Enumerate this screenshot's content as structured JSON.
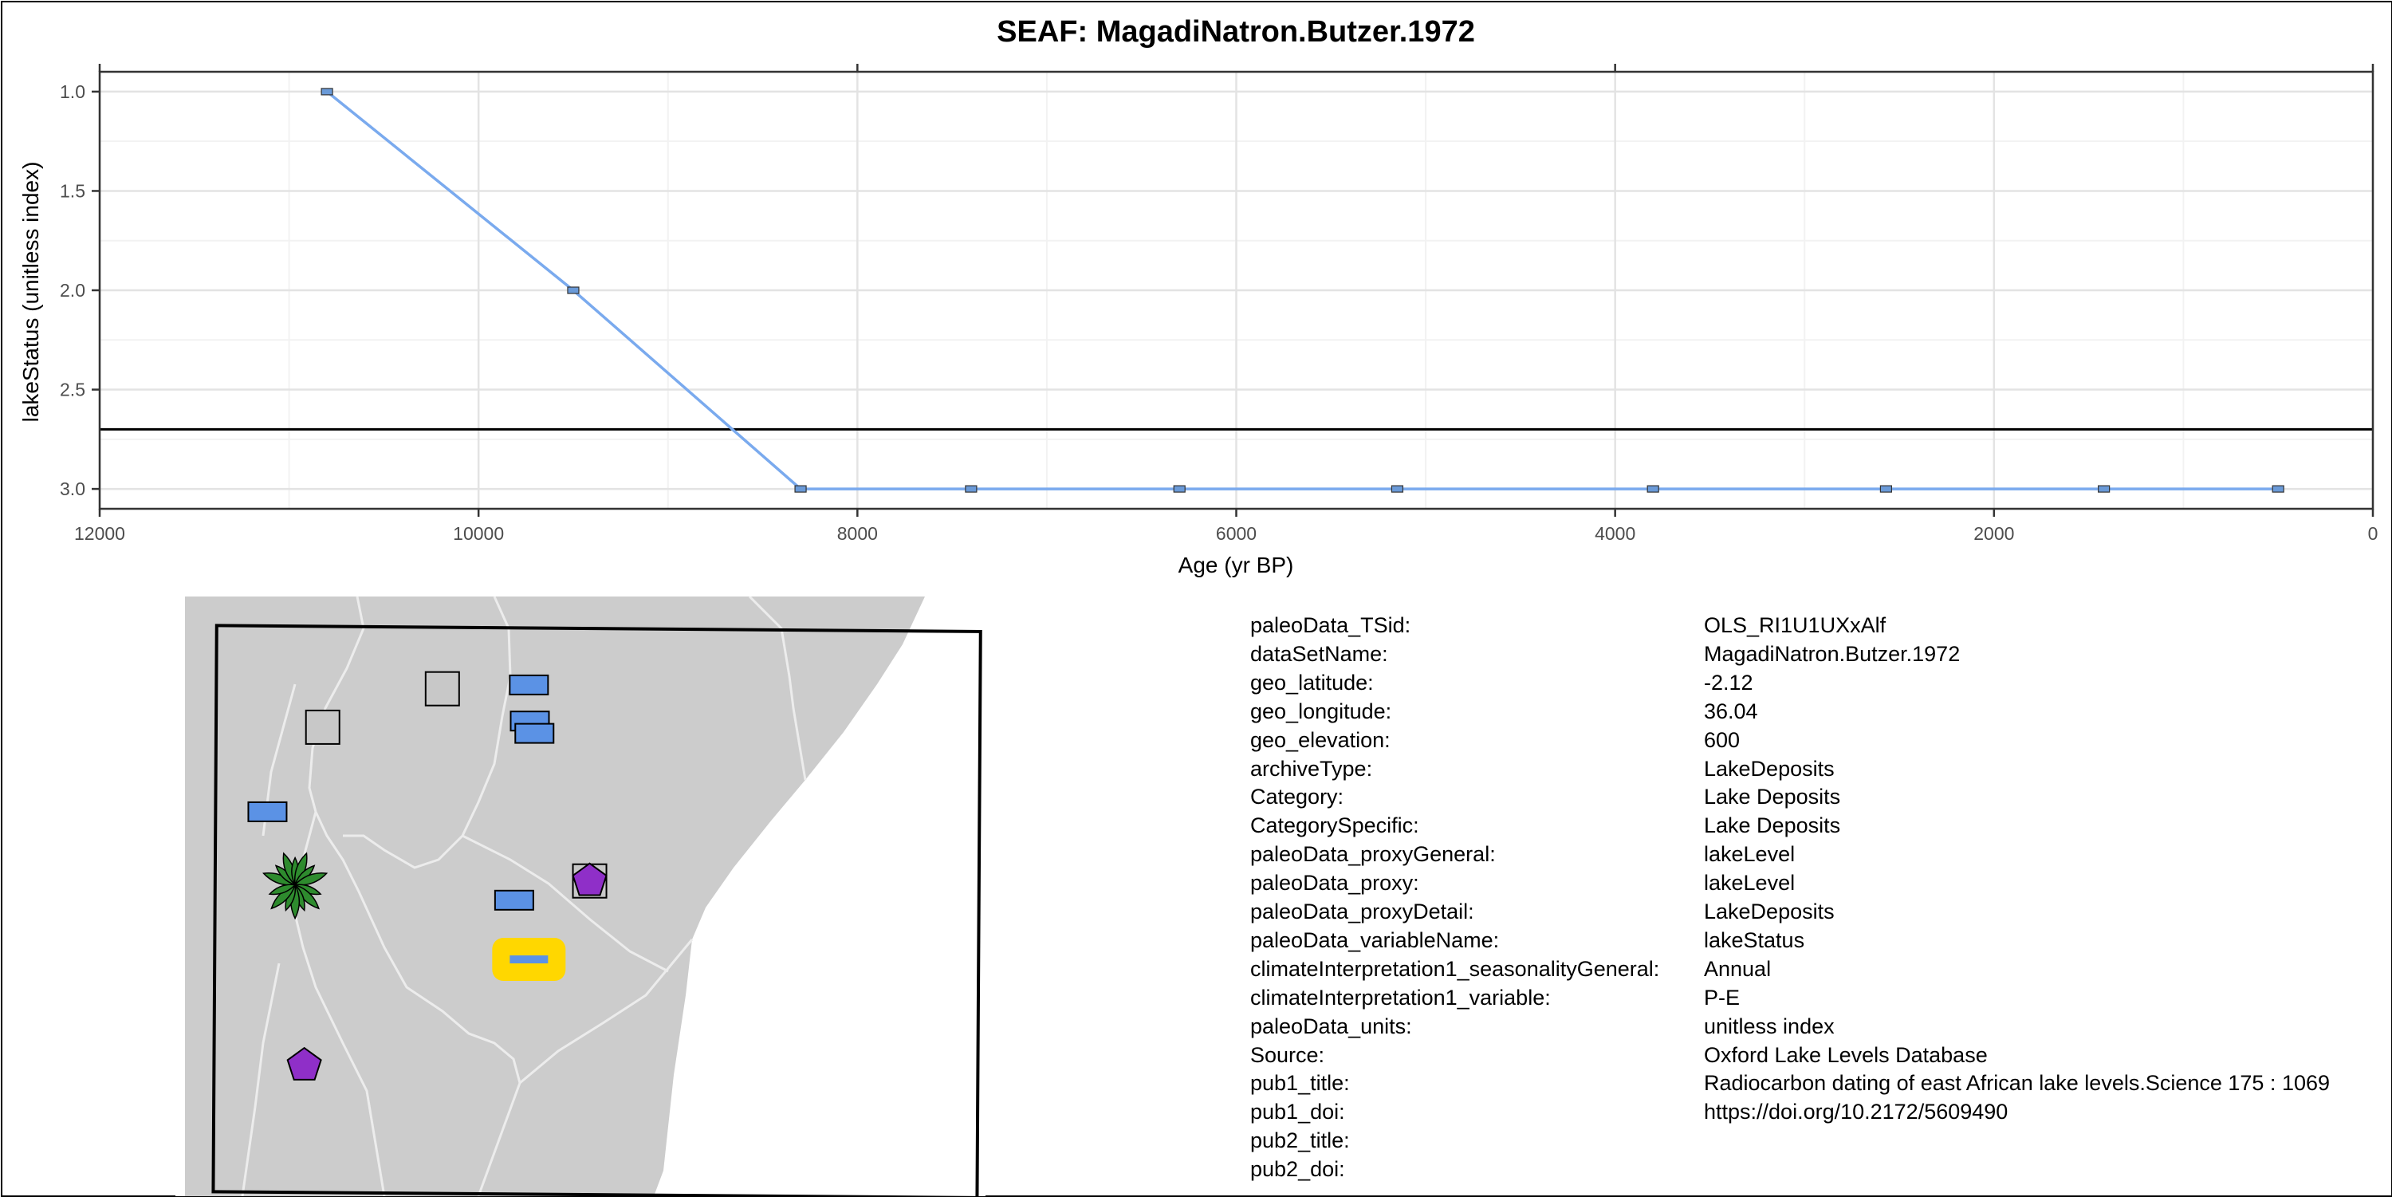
{
  "chart_data": {
    "type": "line",
    "title": "SEAF: MagadiNatron.Butzer.1972",
    "xlabel": "Age (yr BP)",
    "ylabel": "lakeStatus (unitless index)",
    "xlim": [
      12000,
      0
    ],
    "ylim": [
      3.1,
      0.9
    ],
    "x_reversed": true,
    "y_reversed": true,
    "x_ticks": [
      12000,
      10000,
      8000,
      6000,
      4000,
      2000,
      0
    ],
    "x_tick_labels": [
      "12000",
      "10000",
      "8000",
      "6000",
      "4000",
      "2000",
      "0"
    ],
    "y_ticks": [
      1.0,
      1.5,
      2.0,
      2.5,
      3.0
    ],
    "y_tick_labels": [
      "1.0",
      "1.5",
      "2.0",
      "2.5",
      "3.0"
    ],
    "grid": true,
    "hline": 2.7,
    "series": [
      {
        "color": "#7aaaee",
        "marker_color": "#6a9ad8",
        "x": [
          10800,
          9500,
          8300,
          7400,
          6300,
          5150,
          3800,
          2570,
          1420,
          500
        ],
        "y": [
          1.0,
          2.0,
          3.0,
          3.0,
          3.0,
          3.0,
          3.0,
          3.0,
          3.0,
          3.0
        ]
      }
    ]
  },
  "map": {
    "land_color": "#cccccc",
    "sea_color": "#ffffff",
    "border_color": "#e8e8e8",
    "markers": [
      {
        "shape": "square",
        "color": "#c8c8c8",
        "lon": 33.8,
        "lat": 0.9
      },
      {
        "shape": "square",
        "color": "#c8c8c8",
        "lon": 35.1,
        "lat": 1.4
      },
      {
        "shape": "rect",
        "color": "#5b92e5",
        "lon": 36.04,
        "lat": 1.45
      },
      {
        "shape": "rect",
        "color": "#5b92e5",
        "lon": 36.05,
        "lat": 0.98
      },
      {
        "shape": "rect",
        "color": "#5b92e5",
        "lon": 36.1,
        "lat": 0.82
      },
      {
        "shape": "rect",
        "color": "#5b92e5",
        "lon": 33.2,
        "lat": -0.2
      },
      {
        "shape": "rect",
        "color": "#5b92e5",
        "lon": 35.88,
        "lat": -1.35
      },
      {
        "shape": "rect-highlight",
        "color": "#5b92e5",
        "highlight": "#ffd700",
        "lon": 36.04,
        "lat": -2.12
      },
      {
        "shape": "square",
        "color": "#c8c8c8",
        "lon": 36.7,
        "lat": -1.1
      },
      {
        "shape": "pentagon",
        "color": "#8f2fc8",
        "lon": 36.7,
        "lat": -1.1
      },
      {
        "shape": "fern",
        "color": "#2e8b2e",
        "lon": 33.5,
        "lat": -1.15
      },
      {
        "shape": "pentagon",
        "color": "#8f2fc8",
        "lon": 33.6,
        "lat": -3.5
      }
    ]
  },
  "metadata": [
    {
      "key": "paleoData_TSid:",
      "value": "OLS_RI1U1UXxAlf"
    },
    {
      "key": "dataSetName:",
      "value": "MagadiNatron.Butzer.1972"
    },
    {
      "key": "geo_latitude:",
      "value": "-2.12"
    },
    {
      "key": "geo_longitude:",
      "value": "36.04"
    },
    {
      "key": "geo_elevation:",
      "value": "600"
    },
    {
      "key": "archiveType:",
      "value": "LakeDeposits"
    },
    {
      "key": "Category:",
      "value": "Lake Deposits"
    },
    {
      "key": "CategorySpecific:",
      "value": "Lake Deposits"
    },
    {
      "key": "paleoData_proxyGeneral:",
      "value": "lakeLevel"
    },
    {
      "key": "paleoData_proxy:",
      "value": "lakeLevel"
    },
    {
      "key": "paleoData_proxyDetail:",
      "value": "LakeDeposits"
    },
    {
      "key": "paleoData_variableName:",
      "value": "lakeStatus"
    },
    {
      "key": "climateInterpretation1_seasonalityGeneral:",
      "value": "Annual"
    },
    {
      "key": "climateInterpretation1_variable:",
      "value": "P-E"
    },
    {
      "key": "paleoData_units:",
      "value": "unitless index"
    },
    {
      "key": "Source:",
      "value": "Oxford Lake Levels Database"
    },
    {
      "key": "pub1_title:",
      "value": "Radiocarbon dating of east African lake levels.Science 175 : 1069"
    },
    {
      "key": "pub1_doi:",
      "value": "https://doi.org/10.2172/5609490"
    },
    {
      "key": "pub2_title:",
      "value": ""
    },
    {
      "key": "pub2_doi:",
      "value": ""
    }
  ]
}
